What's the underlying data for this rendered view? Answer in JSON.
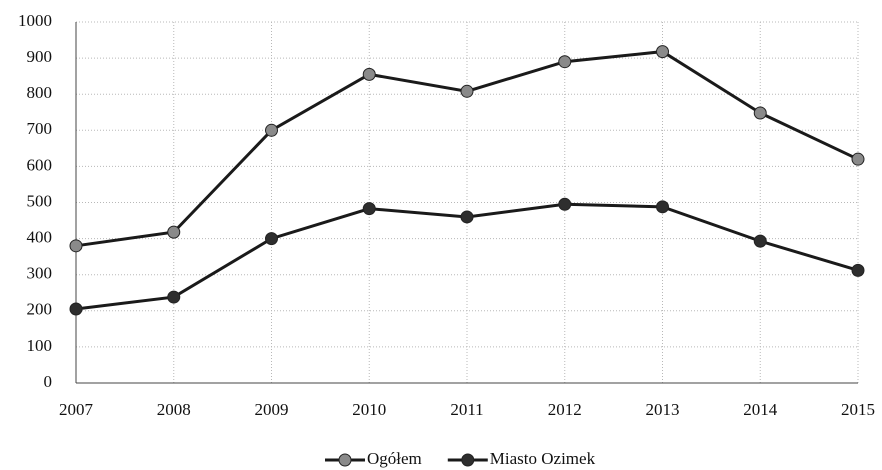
{
  "chart_data": {
    "type": "line",
    "categories": [
      "2007",
      "2008",
      "2009",
      "2010",
      "2011",
      "2012",
      "2013",
      "2014",
      "2015"
    ],
    "series": [
      {
        "name": "Ogółem",
        "color": "#1a1a1a",
        "marker_color": "#8a8a8a",
        "values": [
          380,
          418,
          700,
          855,
          808,
          890,
          918,
          748,
          620
        ]
      },
      {
        "name": "Miasto Ozimek",
        "color": "#1a1a1a",
        "marker_color": "#2e2e2e",
        "values": [
          205,
          238,
          400,
          483,
          460,
          495,
          488,
          393,
          312
        ]
      }
    ],
    "ylim": [
      0,
      1000
    ],
    "yticks": [
      0,
      100,
      200,
      300,
      400,
      500,
      600,
      700,
      800,
      900,
      1000
    ],
    "grid": true,
    "legend": "bottom"
  }
}
